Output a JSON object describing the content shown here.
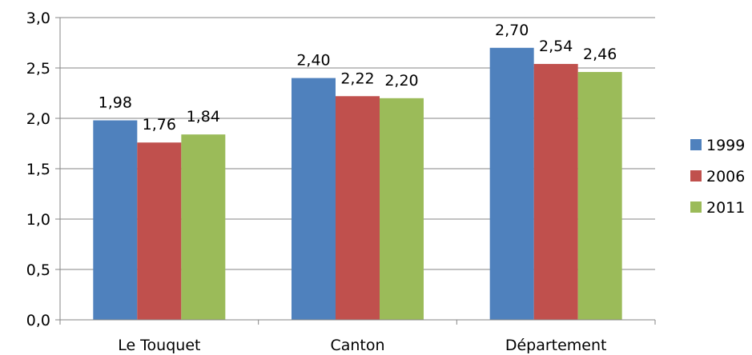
{
  "chart_data": {
    "type": "bar",
    "categories": [
      "Le Touquet",
      "Canton",
      "Département"
    ],
    "series": [
      {
        "name": "1999",
        "values": [
          1.98,
          2.4,
          2.7
        ],
        "labels": [
          "1,98",
          "2,40",
          "2,70"
        ],
        "color": "#4F81BD"
      },
      {
        "name": "2006",
        "values": [
          1.76,
          2.22,
          2.54
        ],
        "labels": [
          "1,76",
          "2,22",
          "2,54"
        ],
        "color": "#C0504D"
      },
      {
        "name": "2011",
        "values": [
          1.84,
          2.2,
          2.46
        ],
        "labels": [
          "1,84",
          "2,20",
          "2,46"
        ],
        "color": "#9BBB59"
      }
    ],
    "yticks": [
      0,
      0.5,
      1.0,
      1.5,
      2.0,
      2.5,
      3.0
    ],
    "ytick_labels": [
      "0,0",
      "0,5",
      "1,0",
      "1,5",
      "2,0",
      "2,5",
      "3,0"
    ],
    "ylim": [
      0,
      3.0
    ],
    "grid": true,
    "legend_position": "right",
    "title": "",
    "xlabel": "",
    "ylabel": ""
  }
}
